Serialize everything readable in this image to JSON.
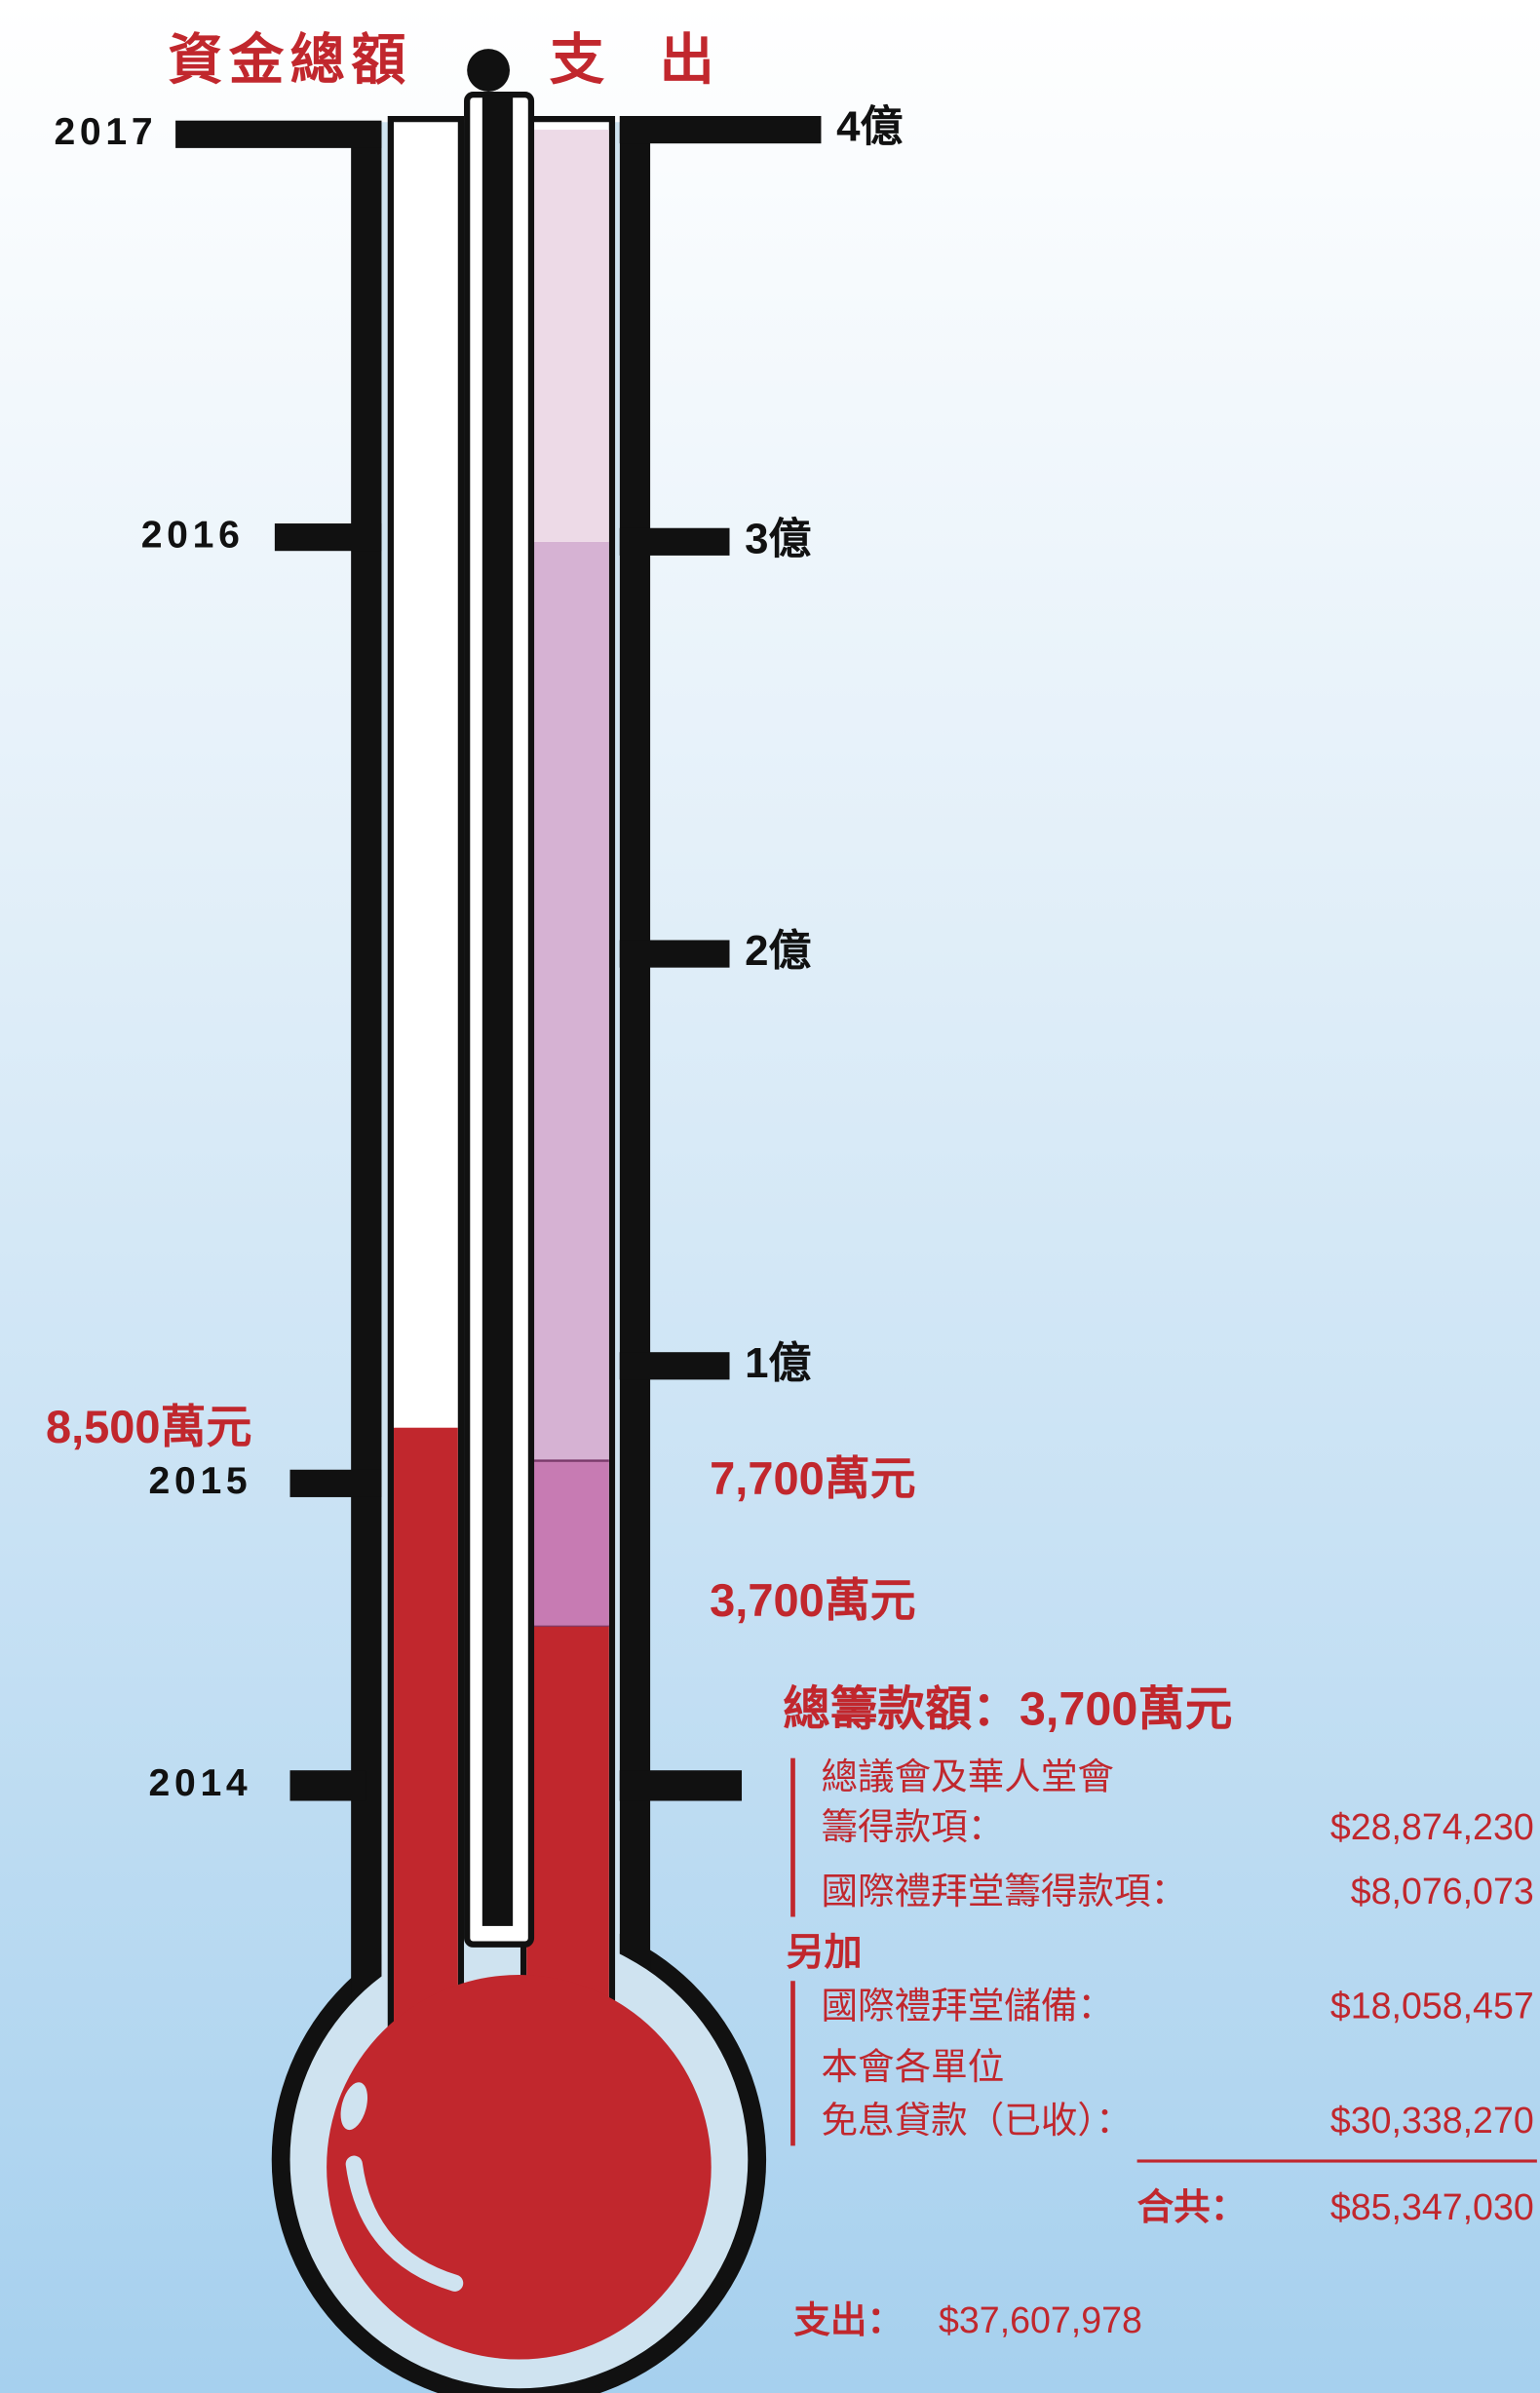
{
  "chart_data": {
    "type": "thermometer",
    "title": "資金總額",
    "subtitle": "支出",
    "ylim": [
      0,
      400000000
    ],
    "yticks": [
      {
        "value": 100000000,
        "label": "1億"
      },
      {
        "value": 200000000,
        "label": "2億"
      },
      {
        "value": 300000000,
        "label": "3億"
      },
      {
        "value": 400000000,
        "label": "4億"
      }
    ],
    "year_labels": [
      "2014",
      "2015",
      "2016",
      "2017"
    ],
    "left": {
      "value": 85000000,
      "value_label": "8,500萬元",
      "color": "#c1272d"
    },
    "right": {
      "values": [
        37000000,
        77000000
      ],
      "value_labels": [
        "3,700萬元",
        "7,700萬元"
      ],
      "colors": [
        "#c1272d",
        "#c77bb3"
      ],
      "band_colors": [
        "#d6b2d3",
        "#eddae7"
      ]
    },
    "summary": {
      "title": "總籌款額：3,700萬元",
      "items": [
        {
          "lines": [
            "總議會及華人堂會",
            "籌得款項："
          ],
          "amount": "$28,874,230"
        },
        {
          "lines": [
            "國際禮拜堂籌得款項："
          ],
          "amount": "$8,076,073"
        }
      ],
      "extra_heading": "另加",
      "extra_items": [
        {
          "lines": [
            "國際禮拜堂儲備："
          ],
          "amount": "$18,058,457"
        },
        {
          "lines": [
            "本會各單位",
            "免息貸款（已收）："
          ],
          "amount": "$30,338,270"
        }
      ],
      "total_label": "合共：",
      "total": "$85,347,030",
      "expense_label": "支出：",
      "expense": "$37,607,978"
    }
  }
}
